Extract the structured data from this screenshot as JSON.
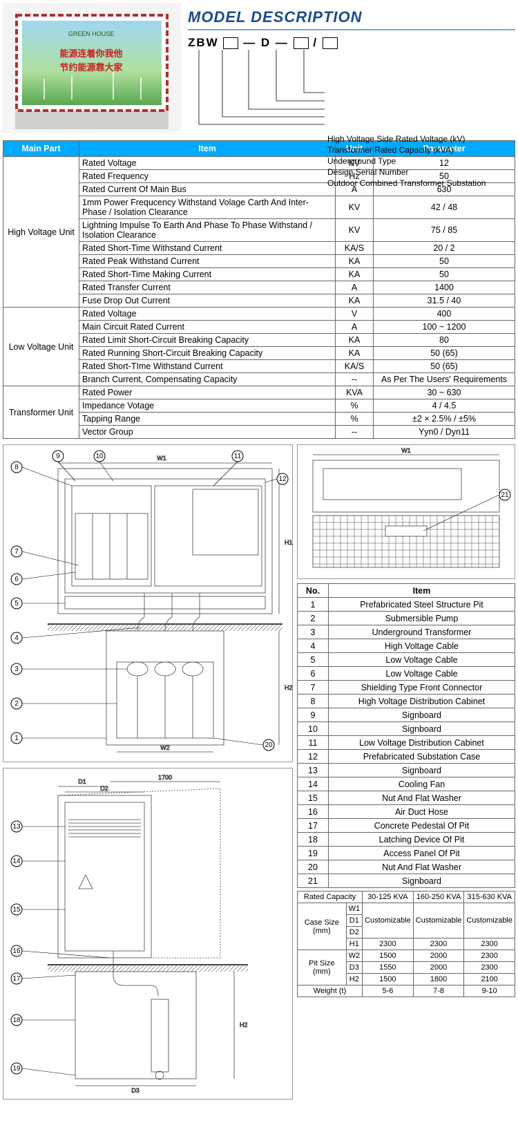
{
  "colors": {
    "header_bg": "#00aaff",
    "header_fg": "#ffffff",
    "title": "#1a4b8c",
    "underline": "#7aa3d0",
    "border": "#666666"
  },
  "fonts": {
    "body_pt": 13,
    "title_pt": 22,
    "table_pt": 12.5,
    "dims_pt": 11
  },
  "model": {
    "title": "MODEL DESCRIPTION",
    "prefix": "ZBW",
    "mid": "D",
    "legend": [
      "High Voltage Side Rated Voltage (kV)",
      "Transformer Rated Capacity (kVA)",
      "Underground Type",
      "Design Serial Number",
      "Outdoor Combined Transformer Substation"
    ]
  },
  "spec_headers": [
    "Main Part",
    "Item",
    "Unit",
    "Parameter"
  ],
  "spec_groups": [
    {
      "part": "High Voltage Unit",
      "rows": [
        {
          "item": "Rated Voltage",
          "unit": "KV",
          "param": "12"
        },
        {
          "item": "Rated Frequency",
          "unit": "Hz",
          "param": "50"
        },
        {
          "item": "Rated Current Of Main Bus",
          "unit": "A",
          "param": "630"
        },
        {
          "item": "1mm Power Frequcency Withstand Volage Carth And Inter-Phase / Isolation Clearance",
          "unit": "KV",
          "param": "42 / 48"
        },
        {
          "item": "Lightning Impulse To Earth And Phase To Phase Withstand / Isolation Clearance",
          "unit": "KV",
          "param": "75 / 85"
        },
        {
          "item": "Rated Short-Time Withstand Current",
          "unit": "KA/S",
          "param": "20 / 2"
        },
        {
          "item": "Rated Peak Withstand Current",
          "unit": "KA",
          "param": "50"
        },
        {
          "item": "Rated Short-Time Making Current",
          "unit": "KA",
          "param": "50"
        },
        {
          "item": "Rated Transfer Current",
          "unit": "A",
          "param": "1400"
        },
        {
          "item": "Fuse Drop Out Current",
          "unit": "KA",
          "param": "31.5 / 40"
        }
      ]
    },
    {
      "part": "Low Voltage Unit",
      "rows": [
        {
          "item": "Rated Voltage",
          "unit": "V",
          "param": "400"
        },
        {
          "item": "Main Circuit Rated Current",
          "unit": "A",
          "param": "100 ~ 1200"
        },
        {
          "item": "Rated Limit Short-Circuit Breaking Capacity",
          "unit": "KA",
          "param": "80"
        },
        {
          "item": "Rated Running Short-Circuit Breaking Capacity",
          "unit": "KA",
          "param": "50 (65)"
        },
        {
          "item": "Rated Short-TIme Withstand Current",
          "unit": "KA/S",
          "param": "50 (65)"
        },
        {
          "item": "Branch Current, Compensating Capacity",
          "unit": "--",
          "param": "As Per The Users' Requirements"
        }
      ]
    },
    {
      "part": "Transformer Unit",
      "rows": [
        {
          "item": "Rated Power",
          "unit": "KVA",
          "param": "30 ~ 630"
        },
        {
          "item": "Impedance Votage",
          "unit": "%",
          "param": "4 / 4.5"
        },
        {
          "item": "Tapping Range",
          "unit": "%",
          "param": "±2 × 2.5% / ±5%"
        },
        {
          "item": "Vector Group",
          "unit": "--",
          "param": "Yyn0 / Dyn11"
        }
      ]
    }
  ],
  "parts_headers": [
    "No.",
    "Item"
  ],
  "parts": [
    {
      "no": "1",
      "item": "Prefabricated Steel Structure Pit"
    },
    {
      "no": "2",
      "item": "Submersible Pump"
    },
    {
      "no": "3",
      "item": "Underground Transformer"
    },
    {
      "no": "4",
      "item": "High Voltage Cable"
    },
    {
      "no": "5",
      "item": "Low Voltage Cable"
    },
    {
      "no": "6",
      "item": "Low Voltage Cable"
    },
    {
      "no": "7",
      "item": "Shielding Type Front Connector"
    },
    {
      "no": "8",
      "item": "High Voltage Distribution Cabinet"
    },
    {
      "no": "9",
      "item": "Signboard"
    },
    {
      "no": "10",
      "item": "Signboard"
    },
    {
      "no": "11",
      "item": "Low Voltage Distribution Cabinet"
    },
    {
      "no": "12",
      "item": "Prefabricated Substation Case"
    },
    {
      "no": "13",
      "item": "Signboard"
    },
    {
      "no": "14",
      "item": "Cooling Fan"
    },
    {
      "no": "15",
      "item": "Nut And Flat Washer"
    },
    {
      "no": "16",
      "item": "Air Duct Hose"
    },
    {
      "no": "17",
      "item": "Concrete Pedestal Of Pit"
    },
    {
      "no": "18",
      "item": "Latching Device Of Pit"
    },
    {
      "no": "19",
      "item": "Access Panel Of Pit"
    },
    {
      "no": "20",
      "item": "Nut And Flat Washer"
    },
    {
      "no": "21",
      "item": "Signboard"
    }
  ],
  "dims": {
    "cap_header": "Rated Capacity",
    "caps": [
      "30-125 KVA",
      "160-250 KVA",
      "315-630 KVA"
    ],
    "case_label": "Case Size (mm)",
    "case_rows": [
      {
        "k": "W1",
        "v": [
          "Customizable",
          "Customizable",
          "Customizable"
        ],
        "span": 3
      },
      {
        "k": "D1"
      },
      {
        "k": "D2"
      }
    ],
    "case_h1": {
      "k": "H1",
      "v": [
        "2300",
        "2300",
        "2300"
      ]
    },
    "pit_label": "Pit Size (mm)",
    "pit_rows": [
      {
        "k": "W2",
        "v": [
          "1500",
          "2000",
          "2300"
        ]
      },
      {
        "k": "D3",
        "v": [
          "1550",
          "2000",
          "2300"
        ]
      },
      {
        "k": "H2",
        "v": [
          "1500",
          "1800",
          "2100"
        ]
      }
    ],
    "weight_label": "Weight (t)",
    "weight": [
      "5-6",
      "7-8",
      "9-10"
    ]
  },
  "diagram_labels": {
    "front": "W1",
    "side_top": "D1",
    "side_bot": "D2",
    "side_dim": "1700",
    "h1": "H1",
    "h2": "H2",
    "w2": "W2",
    "d3": "D3"
  }
}
